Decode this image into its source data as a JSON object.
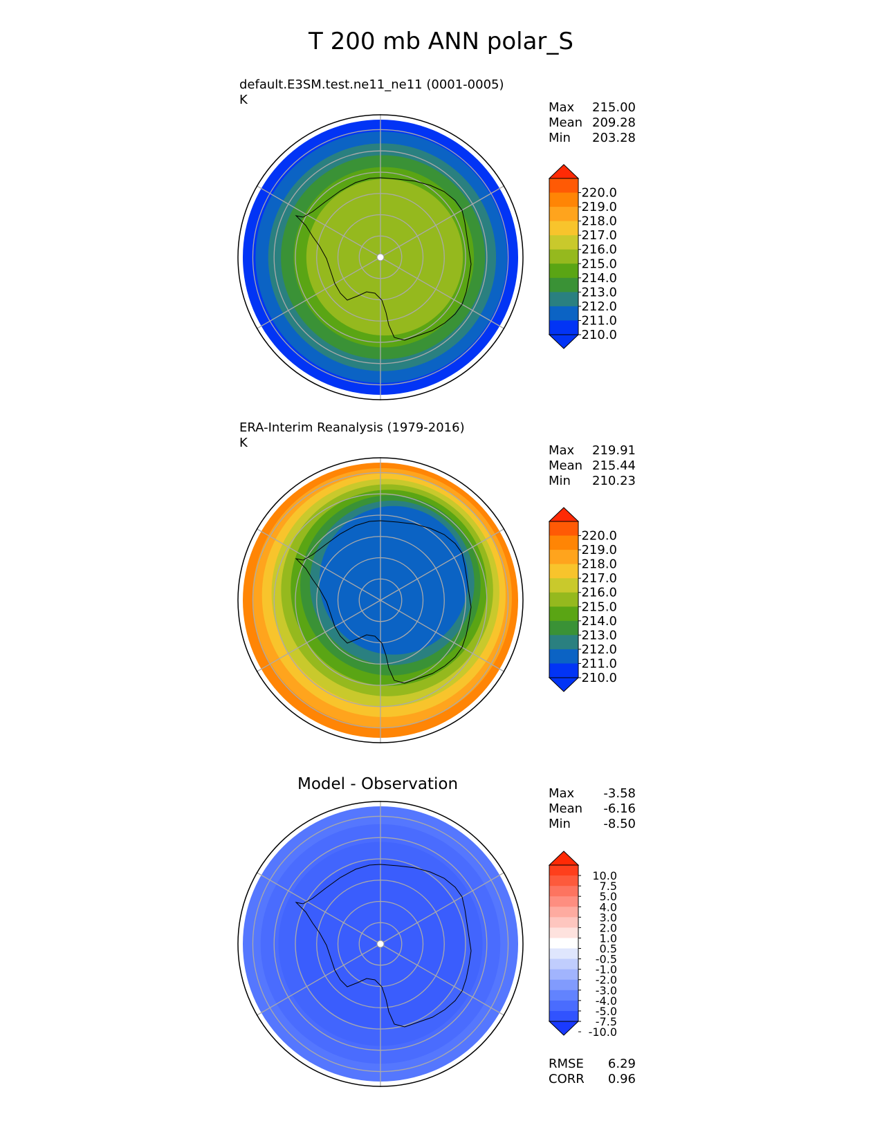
{
  "title": "T 200 mb ANN polar_S",
  "panels": [
    {
      "id": "test",
      "subtitle": "default.E3SM.test.ne11_ne11 (0001-0005)",
      "units": "K",
      "stats": [
        {
          "label": "Max",
          "value": "215.00"
        },
        {
          "label": "Mean",
          "value": "209.28"
        },
        {
          "label": "Min",
          "value": "203.28"
        }
      ],
      "colorbar": {
        "ticks": [
          "220.0",
          "219.0",
          "218.0",
          "217.0",
          "216.0",
          "215.0",
          "214.0",
          "213.0",
          "212.0",
          "211.0",
          "210.0"
        ],
        "colors": [
          "#ff2a05",
          "#ff5a05",
          "#ff8505",
          "#ffa41d",
          "#f8c42c",
          "#c9c92c",
          "#95b91e",
          "#5aa514",
          "#3a9236",
          "#2a8080",
          "#0b63c4",
          "#0234f5",
          "#0234f5"
        ]
      },
      "field_rings": [
        {
          "value": 210.0,
          "color": "#0234f5"
        },
        {
          "value": 211.0,
          "color": "#0b63c4"
        },
        {
          "value": 211.5,
          "color": "#2a8080"
        },
        {
          "value": 212.5,
          "color": "#3a9236"
        },
        {
          "value": 213.5,
          "color": "#5aa514"
        },
        {
          "value": 214.5,
          "color": "#95b91e"
        }
      ]
    },
    {
      "id": "ref",
      "subtitle": "ERA-Interim Reanalysis (1979-2016)",
      "units": "K",
      "stats": [
        {
          "label": "Max",
          "value": "219.91"
        },
        {
          "label": "Mean",
          "value": "215.44"
        },
        {
          "label": "Min",
          "value": "210.23"
        }
      ],
      "colorbar": {
        "ticks": [
          "220.0",
          "219.0",
          "218.0",
          "217.0",
          "216.0",
          "215.0",
          "214.0",
          "213.0",
          "212.0",
          "211.0",
          "210.0"
        ],
        "colors": [
          "#ff2a05",
          "#ff5a05",
          "#ff8505",
          "#ffa41d",
          "#f8c42c",
          "#c9c92c",
          "#95b91e",
          "#5aa514",
          "#3a9236",
          "#2a8080",
          "#0b63c4",
          "#0234f5",
          "#0234f5"
        ]
      },
      "field_rings": [
        {
          "value": 218.5,
          "color": "#ff8505"
        },
        {
          "value": 217.5,
          "color": "#ffa41d"
        },
        {
          "value": 216.5,
          "color": "#f8c42c"
        },
        {
          "value": 215.5,
          "color": "#c9c92c"
        },
        {
          "value": 214.5,
          "color": "#95b91e"
        },
        {
          "value": 213.5,
          "color": "#5aa514"
        },
        {
          "value": 212.5,
          "color": "#3a9236"
        },
        {
          "value": 211.5,
          "color": "#2a8080"
        },
        {
          "value": 211.0,
          "color": "#0b63c4"
        }
      ]
    },
    {
      "id": "diff",
      "title": "Model - Observation",
      "stats": [
        {
          "label": "Max",
          "value": "-3.58"
        },
        {
          "label": "Mean",
          "value": "-6.16"
        },
        {
          "label": "Min",
          "value": "-8.50"
        }
      ],
      "colorbar": {
        "ticks": [
          "10.0",
          "7.5",
          "5.0",
          "4.0",
          "3.0",
          "2.0",
          "1.0",
          "0.5",
          "-0.5",
          "-1.0",
          "-2.0",
          "-3.0",
          "-4.0",
          "-5.0",
          "-7.5",
          "-10.0"
        ],
        "colors": [
          "#ff2a05",
          "#fe3f1c",
          "#fd5a3c",
          "#fd7460",
          "#fe8e80",
          "#feaba0",
          "#fec6bf",
          "#fee2de",
          "#ffffff",
          "#dfe6fd",
          "#c0cdfd",
          "#a1b4fd",
          "#819bfd",
          "#6283fe",
          "#4a6cfe",
          "#3153fe",
          "#1a3afe"
        ]
      },
      "field_rings": [
        {
          "value": -5.5,
          "color": "#5577fe"
        },
        {
          "value": -6.0,
          "color": "#4a6cfe"
        },
        {
          "value": -6.5,
          "color": "#4265fd"
        },
        {
          "value": -7.0,
          "color": "#3a5dfd"
        }
      ],
      "summary": [
        {
          "label": "RMSE",
          "value": "6.29"
        },
        {
          "label": "CORR",
          "value": "0.96"
        }
      ]
    }
  ]
}
